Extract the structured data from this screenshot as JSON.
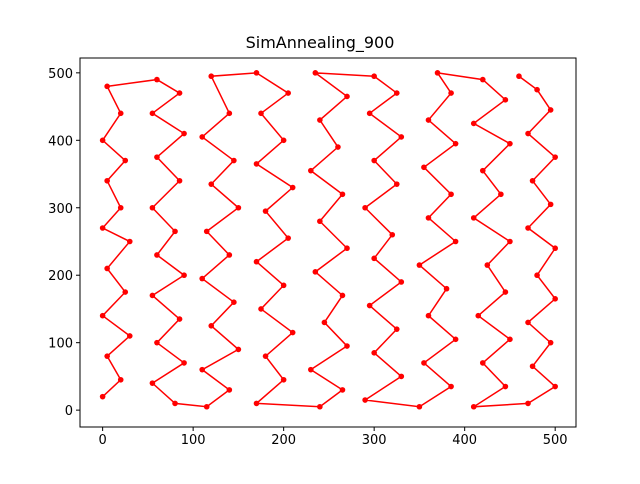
{
  "chart_data": {
    "type": "line",
    "title": "SimAnnealing_900",
    "color": "#ff0000",
    "markers": true,
    "grid": false,
    "xlim": [
      -25,
      523
    ],
    "ylim": [
      -25,
      522
    ],
    "xticks": [
      0,
      100,
      200,
      300,
      400,
      500
    ],
    "yticks": [
      0,
      100,
      200,
      300,
      400,
      500
    ],
    "x": [
      0,
      20,
      5,
      30,
      0,
      25,
      5,
      30,
      0,
      20,
      5,
      25,
      0,
      20,
      5,
      60,
      85,
      55,
      90,
      60,
      85,
      55,
      80,
      60,
      90,
      55,
      85,
      60,
      90,
      55,
      80,
      115,
      140,
      110,
      150,
      120,
      145,
      110,
      140,
      115,
      150,
      120,
      145,
      110,
      140,
      120,
      170,
      205,
      175,
      200,
      170,
      210,
      180,
      205,
      170,
      200,
      175,
      210,
      180,
      200,
      170,
      240,
      265,
      230,
      270,
      245,
      265,
      235,
      270,
      240,
      265,
      230,
      260,
      240,
      270,
      235,
      300,
      325,
      295,
      330,
      300,
      325,
      290,
      320,
      300,
      330,
      295,
      325,
      300,
      330,
      290,
      350,
      385,
      355,
      390,
      360,
      380,
      350,
      390,
      360,
      385,
      355,
      390,
      360,
      385,
      370,
      420,
      445,
      410,
      450,
      420,
      440,
      410,
      450,
      425,
      445,
      415,
      450,
      420,
      445,
      410,
      470,
      500,
      475,
      495,
      470,
      500,
      480,
      500,
      470,
      495,
      475,
      500,
      470,
      495,
      480,
      460
    ],
    "y": [
      20,
      45,
      80,
      110,
      140,
      175,
      210,
      250,
      270,
      300,
      340,
      370,
      400,
      440,
      480,
      490,
      470,
      440,
      410,
      375,
      340,
      300,
      265,
      230,
      200,
      170,
      135,
      100,
      70,
      40,
      10,
      5,
      30,
      60,
      90,
      125,
      160,
      195,
      230,
      265,
      300,
      335,
      370,
      405,
      440,
      495,
      500,
      470,
      440,
      400,
      365,
      330,
      295,
      255,
      220,
      185,
      150,
      115,
      80,
      45,
      10,
      5,
      30,
      60,
      95,
      130,
      170,
      205,
      240,
      280,
      320,
      355,
      390,
      430,
      465,
      500,
      495,
      470,
      440,
      405,
      370,
      335,
      300,
      260,
      225,
      190,
      155,
      120,
      85,
      50,
      15,
      5,
      35,
      70,
      105,
      140,
      180,
      215,
      250,
      285,
      320,
      360,
      395,
      430,
      470,
      500,
      490,
      460,
      425,
      395,
      355,
      320,
      285,
      250,
      215,
      175,
      140,
      105,
      70,
      35,
      5,
      10,
      35,
      65,
      100,
      130,
      165,
      200,
      240,
      270,
      305,
      340,
      375,
      410,
      445,
      475,
      495
    ]
  }
}
